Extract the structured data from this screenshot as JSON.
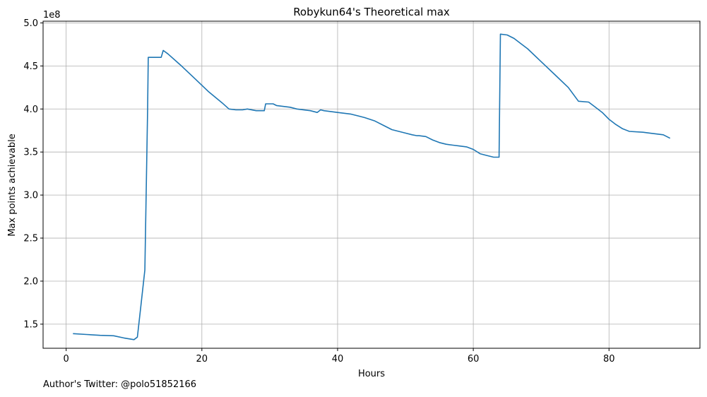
{
  "credit": "Author's Twitter: @polo51852166",
  "chart_data": {
    "type": "line",
    "title": "Robykun64's Theoretical max",
    "xlabel": "Hours",
    "ylabel": "Max points achievable",
    "y_offset_label": "1e8",
    "xlim": [
      -3.4,
      93.4
    ],
    "ylim": [
      1.22,
      5.02
    ],
    "xticks": [
      0,
      20,
      40,
      60,
      80
    ],
    "xtick_labels": [
      "0",
      "20",
      "40",
      "60",
      "80"
    ],
    "yticks": [
      1.5,
      2.0,
      2.5,
      3.0,
      3.5,
      4.0,
      4.5,
      5.0
    ],
    "ytick_labels": [
      "1.5",
      "2.0",
      "2.5",
      "3.0",
      "3.5",
      "4.0",
      "4.5",
      "5.0"
    ],
    "grid": true,
    "line_color": "#1f77b4",
    "series": [
      {
        "x": [
          1.0,
          3.0,
          5.0,
          7.0,
          8.5,
          10.0,
          10.5,
          11.0,
          11.6,
          12.0,
          12.1,
          13.0,
          14.0,
          14.3,
          15.0,
          17.0,
          19.0,
          21.0,
          23.0,
          24.0,
          25.0,
          26.0,
          26.7,
          28.0,
          29.2,
          29.4,
          30.5,
          31.0,
          33.0,
          34.0,
          36.0,
          37.0,
          37.5,
          38.0,
          40.0,
          42.0,
          44.0,
          45.5,
          47.0,
          48.0,
          50.0,
          51.0,
          51.7,
          52.0,
          53.0,
          54.0,
          55.0,
          56.0,
          57.0,
          58.0,
          59.0,
          60.0,
          61.0,
          62.0,
          63.0,
          63.8,
          64.0,
          65.0,
          66.0,
          67.0,
          68.0,
          70.0,
          72.0,
          74.0,
          75.5,
          77.0,
          78.0,
          79.0,
          80.0,
          81.0,
          82.0,
          83.0,
          85.0,
          86.0,
          88.0,
          89.0
        ],
        "y": [
          1.39,
          1.38,
          1.37,
          1.365,
          1.34,
          1.32,
          1.35,
          1.7,
          2.13,
          4.0,
          4.6,
          4.6,
          4.6,
          4.68,
          4.64,
          4.5,
          4.35,
          4.2,
          4.07,
          4.0,
          3.99,
          3.99,
          4.0,
          3.98,
          3.98,
          4.06,
          4.06,
          4.04,
          4.02,
          4.0,
          3.98,
          3.96,
          3.99,
          3.98,
          3.96,
          3.94,
          3.9,
          3.86,
          3.8,
          3.76,
          3.72,
          3.7,
          3.69,
          3.69,
          3.68,
          3.64,
          3.61,
          3.59,
          3.58,
          3.57,
          3.56,
          3.53,
          3.48,
          3.46,
          3.44,
          3.44,
          4.87,
          4.86,
          4.82,
          4.76,
          4.7,
          4.55,
          4.4,
          4.25,
          4.09,
          4.08,
          4.02,
          3.96,
          3.88,
          3.82,
          3.77,
          3.74,
          3.73,
          3.72,
          3.7,
          3.66
        ]
      }
    ]
  }
}
